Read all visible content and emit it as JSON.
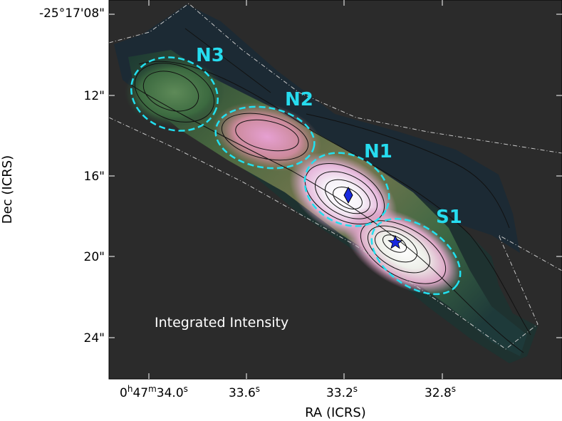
{
  "chart_data": {
    "type": "heatmap",
    "panel_label": "Integrated Intensity",
    "xlabel": "RA (ICRS)",
    "ylabel": "Dec (ICRS)",
    "x_ticks": [
      {
        "label_main": "0",
        "sup1": "h",
        "mid": "47",
        "sup2": "m",
        "sec": "34.0",
        "sup3": "s"
      },
      {
        "label_main": "33.6",
        "sup3": "s"
      },
      {
        "label_main": "33.2",
        "sup3": "s"
      },
      {
        "label_main": "32.8",
        "sup3": "s"
      }
    ],
    "y_ticks": [
      "-25°17'08\"",
      "12\"",
      "16\"",
      "20\"",
      "24\""
    ],
    "regions": [
      {
        "name": "N3"
      },
      {
        "name": "N2"
      },
      {
        "name": "N1"
      },
      {
        "name": "S1"
      }
    ],
    "markers": [
      {
        "name": "diamond",
        "color": "#1a2adf"
      },
      {
        "name": "star",
        "color": "#1a2adf"
      }
    ],
    "colors": {
      "background": "#2b2b2b",
      "region_ellipse": "#22e0f0",
      "contour": "#111111",
      "footprint_outline": "#c8c8c8"
    }
  }
}
